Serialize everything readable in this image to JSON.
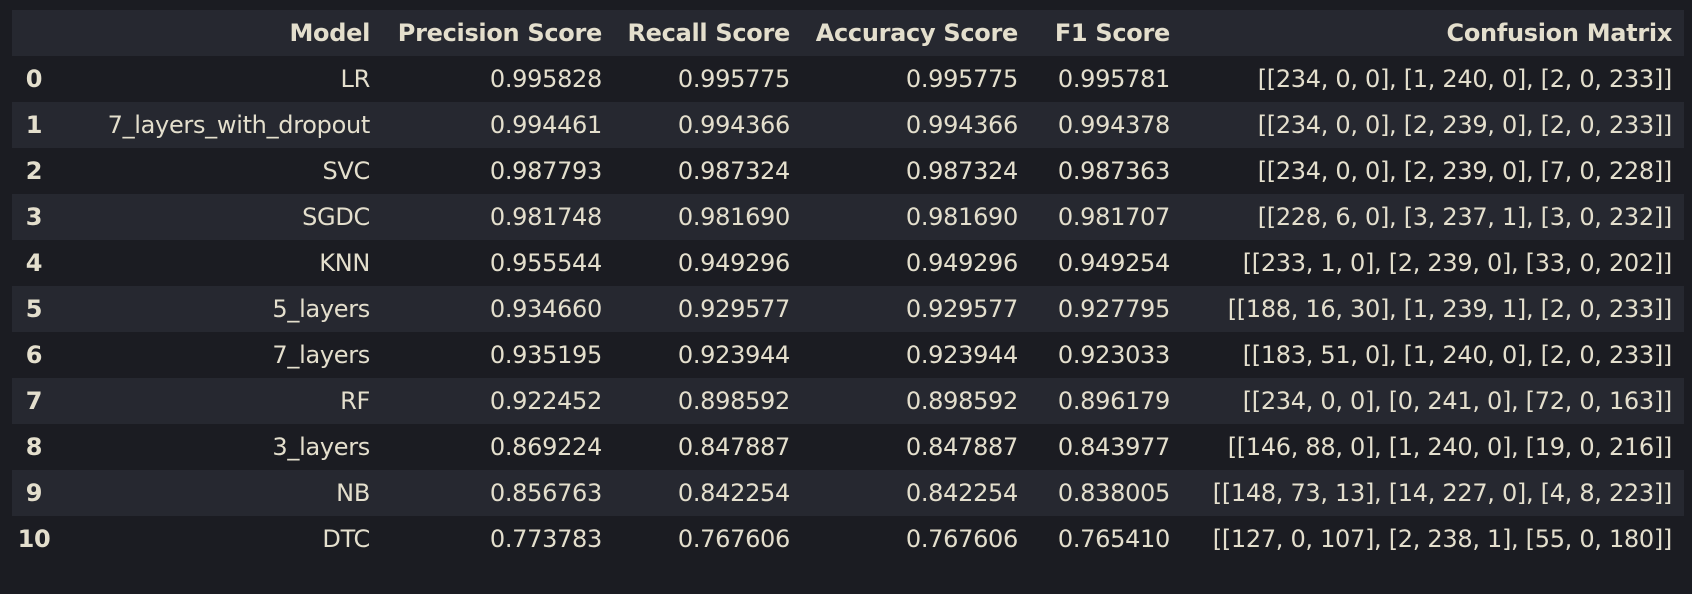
{
  "table": {
    "headers": {
      "index": "",
      "model": "Model",
      "precision": "Precision Score",
      "recall": "Recall Score",
      "accuracy": "Accuracy Score",
      "f1": "F1 Score",
      "confusion": "Confusion Matrix"
    },
    "rows": [
      {
        "index": "0",
        "model": "LR",
        "precision": "0.995828",
        "recall": "0.995775",
        "accuracy": "0.995775",
        "f1": "0.995781",
        "confusion": "[[234, 0, 0], [1, 240, 0], [2, 0, 233]]"
      },
      {
        "index": "1",
        "model": "7_layers_with_dropout",
        "precision": "0.994461",
        "recall": "0.994366",
        "accuracy": "0.994366",
        "f1": "0.994378",
        "confusion": "[[234, 0, 0], [2, 239, 0], [2, 0, 233]]"
      },
      {
        "index": "2",
        "model": "SVC",
        "precision": "0.987793",
        "recall": "0.987324",
        "accuracy": "0.987324",
        "f1": "0.987363",
        "confusion": "[[234, 0, 0], [2, 239, 0], [7, 0, 228]]"
      },
      {
        "index": "3",
        "model": "SGDC",
        "precision": "0.981748",
        "recall": "0.981690",
        "accuracy": "0.981690",
        "f1": "0.981707",
        "confusion": "[[228, 6, 0], [3, 237, 1], [3, 0, 232]]"
      },
      {
        "index": "4",
        "model": "KNN",
        "precision": "0.955544",
        "recall": "0.949296",
        "accuracy": "0.949296",
        "f1": "0.949254",
        "confusion": "[[233, 1, 0], [2, 239, 0], [33, 0, 202]]"
      },
      {
        "index": "5",
        "model": "5_layers",
        "precision": "0.934660",
        "recall": "0.929577",
        "accuracy": "0.929577",
        "f1": "0.927795",
        "confusion": "[[188, 16, 30], [1, 239, 1], [2, 0, 233]]"
      },
      {
        "index": "6",
        "model": "7_layers",
        "precision": "0.935195",
        "recall": "0.923944",
        "accuracy": "0.923944",
        "f1": "0.923033",
        "confusion": "[[183, 51, 0], [1, 240, 0], [2, 0, 233]]"
      },
      {
        "index": "7",
        "model": "RF",
        "precision": "0.922452",
        "recall": "0.898592",
        "accuracy": "0.898592",
        "f1": "0.896179",
        "confusion": "[[234, 0, 0], [0, 241, 0], [72, 0, 163]]"
      },
      {
        "index": "8",
        "model": "3_layers",
        "precision": "0.869224",
        "recall": "0.847887",
        "accuracy": "0.847887",
        "f1": "0.843977",
        "confusion": "[[146, 88, 0], [1, 240, 0], [19, 0, 216]]"
      },
      {
        "index": "9",
        "model": "NB",
        "precision": "0.856763",
        "recall": "0.842254",
        "accuracy": "0.842254",
        "f1": "0.838005",
        "confusion": "[[148, 73, 13], [14, 227, 0], [4, 8, 223]]"
      },
      {
        "index": "10",
        "model": "DTC",
        "precision": "0.773783",
        "recall": "0.767606",
        "accuracy": "0.767606",
        "f1": "0.765410",
        "confusion": "[[127, 0, 107], [2, 238, 1], [55, 0, 180]]"
      }
    ]
  },
  "colors": {
    "background": "#1b1c22",
    "stripe": "#262830",
    "text": "#e4dfcd"
  }
}
